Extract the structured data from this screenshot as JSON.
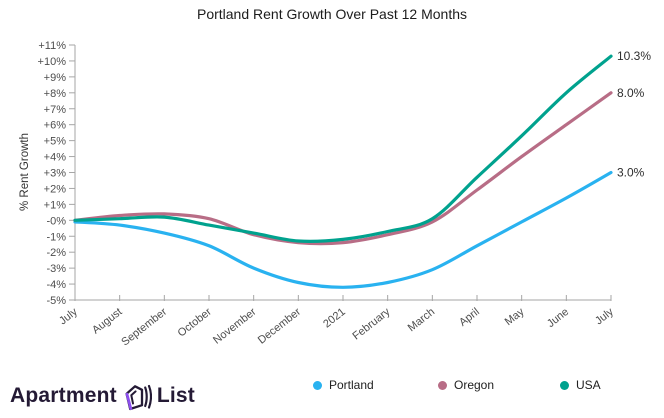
{
  "chart_data": {
    "type": "line",
    "title": "Portland Rent Growth Over Past 12 Months",
    "xlabel": "",
    "ylabel": "% Rent Growth",
    "ylim": [
      -5,
      11
    ],
    "ytick_step": 1,
    "grid": false,
    "legend_position": "bottom",
    "categories": [
      "July",
      "August",
      "September",
      "October",
      "November",
      "December",
      "2021",
      "February",
      "March",
      "April",
      "May",
      "June",
      "July"
    ],
    "ytick_labels": [
      "+11%",
      "+10%",
      "+9%",
      "+8%",
      "+7%",
      "+6%",
      "+5%",
      "+4%",
      "+3%",
      "+2%",
      "+1%",
      "-0%",
      "-1%",
      "-2%",
      "-3%",
      "-4%",
      "-5%"
    ],
    "series": [
      {
        "name": "Portland",
        "color": "#29b2f0",
        "end_label": "3.0%",
        "values": [
          -0.1,
          -0.3,
          -0.8,
          -1.6,
          -3.0,
          -3.9,
          -4.2,
          -3.9,
          -3.1,
          -1.6,
          -0.1,
          1.4,
          3.0
        ]
      },
      {
        "name": "Oregon",
        "color": "#b86d86",
        "end_label": "8.0%",
        "values": [
          0.0,
          0.3,
          0.4,
          0.1,
          -0.9,
          -1.4,
          -1.4,
          -0.9,
          -0.1,
          1.9,
          4.0,
          6.0,
          8.0
        ]
      },
      {
        "name": "USA",
        "color": "#00a28e",
        "end_label": "10.3%",
        "values": [
          0.0,
          0.1,
          0.2,
          -0.3,
          -0.8,
          -1.3,
          -1.2,
          -0.7,
          0.1,
          2.7,
          5.3,
          8.0,
          10.3
        ]
      }
    ],
    "end_label_color": "#2e2e2e",
    "axis_color": "#a6a6a6",
    "tick_text_color": "#4d4d4d"
  },
  "footer": {
    "logo_part1": "Apartment",
    "logo_part2": "List"
  }
}
